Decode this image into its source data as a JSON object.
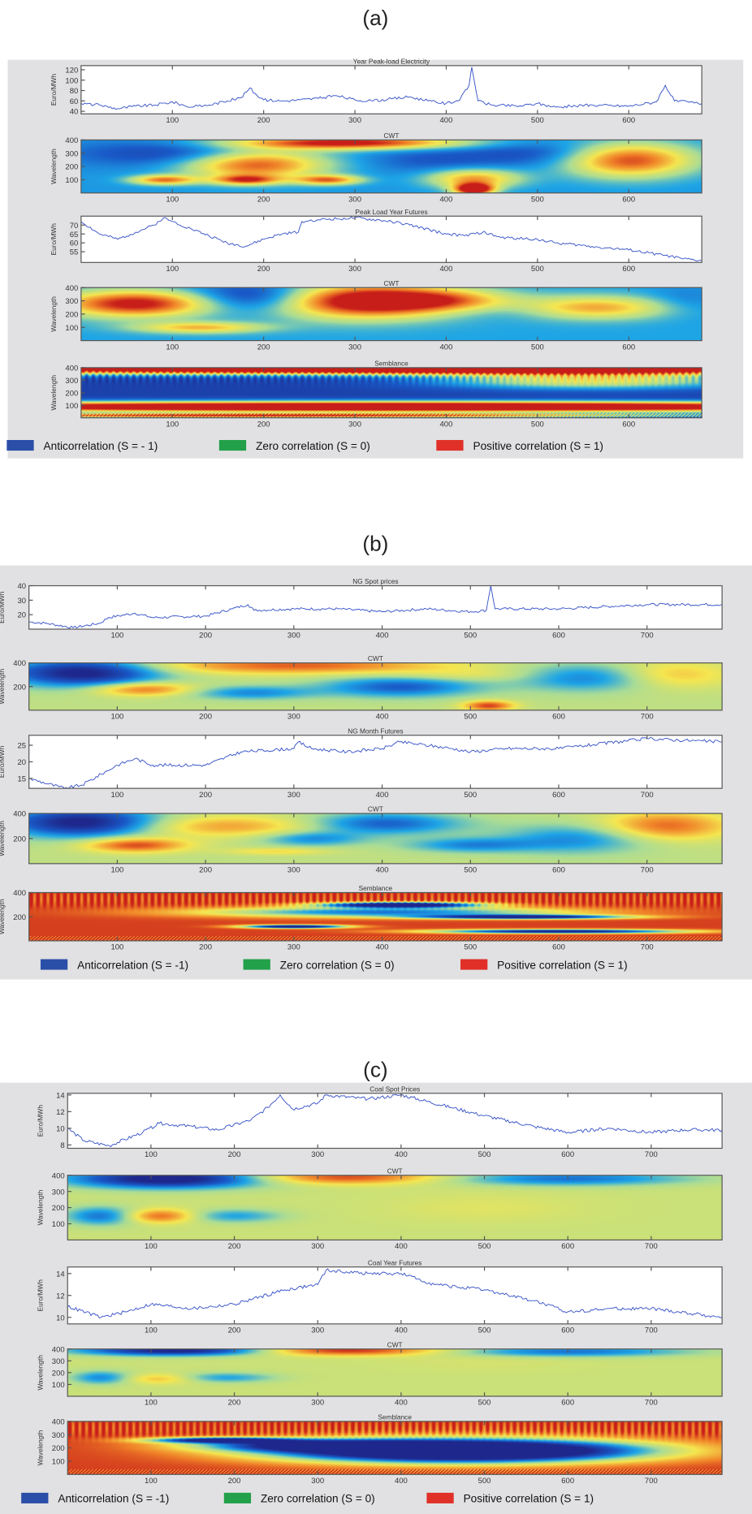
{
  "colors": {
    "line": "#3a55c8",
    "panel_bg": "#e1e1e3",
    "legend_blue": "#2a4fa8",
    "legend_green": "#22a04a",
    "legend_red": "#e03028"
  },
  "chart_data": [
    {
      "label": "(a)",
      "type": "line+heatmap",
      "xlim": [
        0,
        680
      ],
      "xticks": [
        "100",
        "200",
        "300",
        "400",
        "500",
        "600"
      ],
      "subplots": [
        {
          "kind": "line",
          "title": "Year Peak-load Electricity",
          "ylabel": "Euro/MWh",
          "ylim": [
            35,
            128
          ],
          "yticks": [
            "40",
            "60",
            "80",
            "100",
            "120"
          ],
          "x": [
            0,
            20,
            40,
            60,
            80,
            100,
            120,
            140,
            160,
            175,
            185,
            190,
            200,
            220,
            240,
            260,
            280,
            300,
            320,
            340,
            360,
            380,
            400,
            415,
            425,
            428,
            435,
            450,
            480,
            500,
            520,
            560,
            600,
            630,
            640,
            650,
            680
          ],
          "y": [
            55,
            52,
            45,
            50,
            52,
            58,
            48,
            52,
            60,
            66,
            85,
            75,
            62,
            60,
            62,
            65,
            70,
            62,
            60,
            64,
            68,
            60,
            55,
            62,
            90,
            125,
            60,
            52,
            50,
            55,
            48,
            52,
            50,
            58,
            90,
            60,
            55
          ]
        },
        {
          "kind": "heatmap",
          "title": "CWT",
          "ylabel": "Wavelength",
          "ylim": [
            0,
            400
          ],
          "yticks": [
            "100",
            "200",
            "300",
            "400"
          ],
          "background": -0.35,
          "blobs": [
            [
              110,
              300,
              80,
              70,
              -0.8
            ],
            [
              190,
              220,
              55,
              80,
              0.9
            ],
            [
              290,
              380,
              90,
              35,
              1.1
            ],
            [
              380,
              250,
              50,
              70,
              -0.6
            ],
            [
              430,
              110,
              35,
              50,
              0.6
            ],
            [
              430,
              30,
              15,
              30,
              1.4
            ],
            [
              500,
              300,
              60,
              70,
              -0.7
            ],
            [
              600,
              250,
              50,
              90,
              0.9
            ],
            [
              90,
              100,
              25,
              25,
              0.7
            ],
            [
              180,
              100,
              25,
              25,
              0.7
            ],
            [
              270,
              100,
              25,
              25,
              0.7
            ]
          ]
        },
        {
          "kind": "line",
          "title": "Peak Load Year Futures",
          "ylabel": "Euro/MWh",
          "ylim": [
            49,
            75
          ],
          "yticks": [
            "55",
            "60",
            "65",
            "70"
          ],
          "x": [
            0,
            20,
            40,
            60,
            80,
            90,
            100,
            120,
            140,
            160,
            180,
            200,
            220,
            238,
            242,
            260,
            300,
            340,
            360,
            400,
            420,
            440,
            460,
            500,
            520,
            560,
            600,
            640,
            660,
            680
          ],
          "y": [
            72,
            65,
            62,
            66,
            70,
            74,
            72,
            68,
            64,
            60,
            58,
            62,
            65,
            66,
            72,
            73,
            74,
            72,
            70,
            65,
            64,
            66,
            63,
            62,
            60,
            58,
            56,
            53,
            51,
            50
          ]
        },
        {
          "kind": "heatmap",
          "title": "CWT",
          "ylabel": "Wavelength",
          "ylim": [
            0,
            400
          ],
          "yticks": [
            "100",
            "200",
            "300",
            "400"
          ],
          "background": -0.3,
          "blobs": [
            [
              60,
              280,
              60,
              70,
              1.1
            ],
            [
              190,
              330,
              50,
              80,
              -1.0
            ],
            [
              310,
              300,
              70,
              90,
              1.3
            ],
            [
              400,
              300,
              50,
              60,
              0.4
            ],
            [
              460,
              230,
              60,
              50,
              -0.5
            ],
            [
              560,
              250,
              60,
              60,
              0.6
            ],
            [
              660,
              300,
              30,
              80,
              -0.5
            ],
            [
              130,
              100,
              50,
              30,
              0.5
            ]
          ]
        },
        {
          "kind": "heatmap",
          "title": "Semblance",
          "ylabel": "Wavelength",
          "ylim": [
            0,
            400
          ],
          "yticks": [
            "100",
            "200",
            "300",
            "400"
          ],
          "background": -0.8,
          "stripes": true,
          "blobs": [
            [
              340,
              390,
              500,
              30,
              1.7
            ],
            [
              340,
              90,
              500,
              30,
              1.8
            ],
            [
              560,
              300,
              120,
              50,
              0.3
            ],
            [
              200,
              20,
              300,
              12,
              1.0
            ]
          ]
        }
      ],
      "legend": [
        {
          "label": "Anticorrelation (S = - 1)",
          "color": "#2a4fa8"
        },
        {
          "label": "Zero correlation (S = 0)",
          "color": "#22a04a"
        },
        {
          "label": "Positive correlation (S = 1)",
          "color": "#e03028"
        }
      ]
    },
    {
      "label": "(b)",
      "type": "line+heatmap",
      "xlim": [
        0,
        785
      ],
      "xticks": [
        "100",
        "200",
        "300",
        "400",
        "500",
        "600",
        "700"
      ],
      "subplots": [
        {
          "kind": "line",
          "title": "NG Spot prices",
          "ylabel": "Euro/MWh",
          "ylim": [
            10,
            40
          ],
          "yticks": [
            "20",
            "30",
            "40"
          ],
          "x": [
            0,
            20,
            50,
            80,
            90,
            120,
            140,
            200,
            230,
            248,
            255,
            300,
            350,
            400,
            450,
            500,
            518,
            523,
            528,
            600,
            700,
            785
          ],
          "y": [
            15,
            14,
            11,
            14,
            18,
            21,
            18,
            19,
            24,
            27,
            23,
            24,
            24,
            22,
            24,
            22,
            23,
            40,
            24,
            24,
            27,
            27
          ]
        },
        {
          "kind": "heatmap",
          "title": "CWT",
          "ylabel": "Wavelength",
          "ylim": [
            0,
            400
          ],
          "yticks": [
            "200",
            "400"
          ],
          "background": 0.1,
          "blobs": [
            [
              60,
              320,
              60,
              80,
              -1.1
            ],
            [
              130,
              180,
              40,
              40,
              0.8
            ],
            [
              300,
              380,
              120,
              50,
              0.8
            ],
            [
              250,
              150,
              50,
              40,
              -0.4
            ],
            [
              420,
              200,
              60,
              60,
              -0.6
            ],
            [
              520,
              40,
              20,
              30,
              0.9
            ],
            [
              640,
              280,
              60,
              80,
              -0.5
            ],
            [
              720,
              300,
              50,
              80,
              0.6
            ],
            [
              500,
              300,
              60,
              40,
              0.3
            ]
          ]
        },
        {
          "kind": "line",
          "title": "NG Month Futures",
          "ylabel": "Euro/MWh",
          "ylim": [
            12,
            28
          ],
          "yticks": [
            "15",
            "20",
            "25"
          ],
          "x": [
            0,
            40,
            60,
            100,
            120,
            140,
            200,
            240,
            300,
            305,
            320,
            360,
            400,
            420,
            480,
            500,
            540,
            600,
            700,
            785
          ],
          "y": [
            15,
            12,
            13,
            19,
            21,
            19,
            19,
            23,
            24,
            26,
            24,
            23,
            24,
            26,
            24,
            23,
            24,
            24,
            27,
            26
          ]
        },
        {
          "kind": "heatmap",
          "title": "CWT",
          "ylabel": "Wavelength",
          "ylim": [
            0,
            400
          ],
          "yticks": [
            "200",
            "400"
          ],
          "background": 0.1,
          "blobs": [
            [
              60,
              330,
              60,
              80,
              -1.1
            ],
            [
              120,
              150,
              40,
              40,
              0.9
            ],
            [
              220,
              300,
              80,
              60,
              0.6
            ],
            [
              320,
              200,
              40,
              40,
              -0.4
            ],
            [
              400,
              320,
              60,
              60,
              -0.6
            ],
            [
              500,
              150,
              50,
              40,
              -0.4
            ],
            [
              620,
              200,
              60,
              80,
              -0.4
            ],
            [
              720,
              300,
              50,
              80,
              0.8
            ],
            [
              280,
              100,
              40,
              20,
              0.4
            ]
          ]
        },
        {
          "kind": "heatmap",
          "title": "Semblance",
          "ylabel": "Wavelength",
          "ylim": [
            0,
            400
          ],
          "yticks": [
            "200",
            "400"
          ],
          "background": 0.9,
          "stripes": true,
          "blobs": [
            [
              420,
              300,
              60,
              15,
              -1.6
            ],
            [
              560,
              200,
              80,
              12,
              -1.2
            ],
            [
              300,
              120,
              40,
              10,
              -1.5
            ],
            [
              600,
              80,
              100,
              12,
              -1.2
            ],
            [
              400,
              240,
              150,
              30,
              -0.5
            ]
          ]
        }
      ],
      "legend": [
        {
          "label": "Anticorrelation (S = -1)",
          "color": "#2a4fa8"
        },
        {
          "label": "Zero correlation (S = 0)",
          "color": "#22a04a"
        },
        {
          "label": "Positive correlation (S = 1)",
          "color": "#e03028"
        }
      ]
    },
    {
      "label": "(c)",
      "type": "line+heatmap",
      "xlim": [
        0,
        785
      ],
      "xticks": [
        "100",
        "200",
        "300",
        "400",
        "500",
        "600",
        "700"
      ],
      "subplots": [
        {
          "kind": "line",
          "title": "Coal Spot Prices",
          "ylabel": "Euro/MWh",
          "ylim": [
            7.6,
            14.2
          ],
          "yticks": [
            "8",
            "10",
            "12",
            "14"
          ],
          "x": [
            0,
            20,
            50,
            90,
            110,
            150,
            180,
            220,
            240,
            255,
            270,
            300,
            310,
            360,
            400,
            460,
            500,
            560,
            600,
            650,
            700,
            740,
            785
          ],
          "y": [
            10,
            8.5,
            7.9,
            9.5,
            10.6,
            10.2,
            9.8,
            11,
            12.5,
            14,
            12.3,
            13,
            14,
            13.5,
            14,
            12.5,
            11.5,
            10.2,
            9.5,
            10,
            9.5,
            9.8,
            9.8
          ]
        },
        {
          "kind": "heatmap",
          "title": "CWT",
          "ylabel": "Wavelength",
          "ylim": [
            0,
            400
          ],
          "yticks": [
            "100",
            "200",
            "300",
            "400"
          ],
          "background": 0.15,
          "blobs": [
            [
              120,
              380,
              80,
              40,
              -1.2
            ],
            [
              40,
              150,
              30,
              40,
              -0.5
            ],
            [
              110,
              150,
              30,
              30,
              0.8
            ],
            [
              330,
              390,
              80,
              30,
              0.9
            ],
            [
              600,
              380,
              100,
              30,
              -0.5
            ],
            [
              200,
              150,
              40,
              30,
              -0.3
            ],
            [
              500,
              200,
              80,
              60,
              0.25
            ]
          ]
        },
        {
          "kind": "line",
          "title": "Coal Year Futures",
          "ylabel": "Euro/MWh",
          "ylim": [
            9.4,
            14.6
          ],
          "yticks": [
            "10",
            "12",
            "14"
          ],
          "x": [
            0,
            40,
            70,
            100,
            150,
            200,
            260,
            300,
            310,
            360,
            400,
            440,
            500,
            560,
            600,
            650,
            700,
            785
          ],
          "y": [
            11,
            10,
            10.5,
            11.2,
            10.8,
            11.2,
            12.5,
            13,
            14.3,
            14,
            14,
            13,
            12.5,
            11.5,
            10.5,
            10.8,
            10.8,
            10
          ]
        },
        {
          "kind": "heatmap",
          "title": "CWT",
          "ylabel": "Wavelength",
          "ylim": [
            0,
            400
          ],
          "yticks": [
            "100",
            "200",
            "300",
            "400"
          ],
          "background": 0.15,
          "blobs": [
            [
              130,
              390,
              80,
              30,
              -1.1
            ],
            [
              40,
              160,
              25,
              40,
              -0.4
            ],
            [
              110,
              150,
              30,
              30,
              0.5
            ],
            [
              330,
              390,
              80,
              30,
              1.0
            ],
            [
              600,
              380,
              100,
              30,
              -0.5
            ],
            [
              190,
              160,
              40,
              30,
              -0.3
            ],
            [
              500,
              300,
              80,
              60,
              0.2
            ]
          ]
        },
        {
          "kind": "heatmap",
          "title": "Semblance",
          "ylabel": "Wavelength",
          "ylim": [
            0,
            400
          ],
          "yticks": [
            "100",
            "200",
            "300",
            "400"
          ],
          "background": 0.9,
          "stripes": true,
          "blobs": [
            [
              470,
              180,
              150,
              60,
              -2.4
            ],
            [
              180,
              260,
              60,
              15,
              -1.0
            ],
            [
              300,
              220,
              100,
              30,
              -0.6
            ]
          ]
        }
      ],
      "legend": [
        {
          "label": "Anticorrelation (S = -1)",
          "color": "#2a4fa8"
        },
        {
          "label": "Zero correlation (S = 0)",
          "color": "#22a04a"
        },
        {
          "label": "Positive correlation (S = 1)",
          "color": "#e03028"
        }
      ]
    }
  ]
}
